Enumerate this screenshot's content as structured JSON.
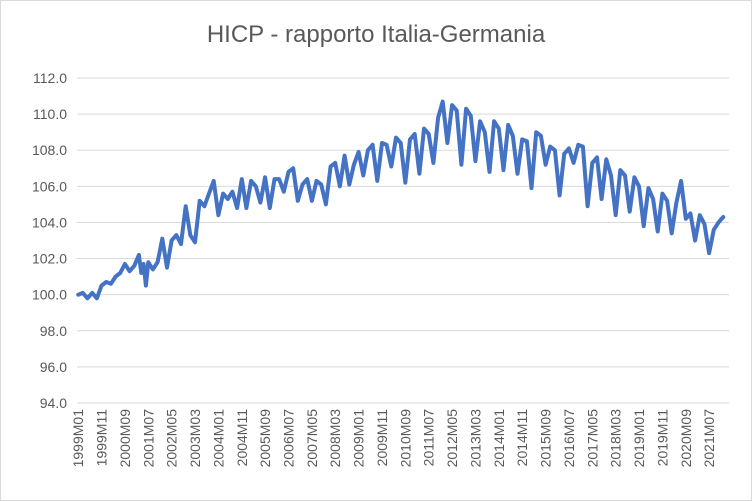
{
  "chart_data": {
    "type": "line",
    "title": "HICP - rapporto Italia-Germania",
    "xlabel": "",
    "ylabel": "",
    "ylim": [
      94.0,
      112.0
    ],
    "yticks": [
      "94.0",
      "96.0",
      "98.0",
      "100.0",
      "102.0",
      "104.0",
      "106.0",
      "108.0",
      "110.0",
      "112.0"
    ],
    "xticks": [
      "1999M01",
      "1999M11",
      "2000M09",
      "2001M07",
      "2002M05",
      "2003M03",
      "2004M01",
      "2004M11",
      "2005M09",
      "2006M07",
      "2007M05",
      "2008M03",
      "2009M01",
      "2009M11",
      "2010M09",
      "2011M07",
      "2012M05",
      "2013M03",
      "2014M01",
      "2014M11",
      "2015M09",
      "2016M07",
      "2017M05",
      "2018M03",
      "2019M01",
      "2019M11",
      "2020M09",
      "2021M07"
    ],
    "x_range": [
      "1999M01",
      "2022M03"
    ],
    "grid": true,
    "legend": "none",
    "line_color": "#4472c4",
    "keypoints": [
      [
        "1999M01",
        100.0
      ],
      [
        "1999M03",
        100.1
      ],
      [
        "1999M05",
        99.8
      ],
      [
        "1999M07",
        100.1
      ],
      [
        "1999M09",
        99.8
      ],
      [
        "1999M11",
        100.5
      ],
      [
        "2000M01",
        100.7
      ],
      [
        "2000M03",
        100.6
      ],
      [
        "2000M05",
        101.0
      ],
      [
        "2000M07",
        101.2
      ],
      [
        "2000M09",
        101.7
      ],
      [
        "2000M11",
        101.3
      ],
      [
        "2001M01",
        101.6
      ],
      [
        "2001M03",
        102.2
      ],
      [
        "2001M04",
        101.2
      ],
      [
        "2001M05",
        101.7
      ],
      [
        "2001M06",
        100.5
      ],
      [
        "2001M07",
        101.8
      ],
      [
        "2001M09",
        101.4
      ],
      [
        "2001M11",
        101.8
      ],
      [
        "2002M01",
        103.1
      ],
      [
        "2002M03",
        101.5
      ],
      [
        "2002M05",
        103.0
      ],
      [
        "2002M07",
        103.3
      ],
      [
        "2002M09",
        102.8
      ],
      [
        "2002M11",
        104.9
      ],
      [
        "2003M01",
        103.3
      ],
      [
        "2003M03",
        102.9
      ],
      [
        "2003M05",
        105.2
      ],
      [
        "2003M07",
        104.9
      ],
      [
        "2003M09",
        105.6
      ],
      [
        "2003M11",
        106.3
      ],
      [
        "2004M01",
        104.4
      ],
      [
        "2004M03",
        105.6
      ],
      [
        "2004M05",
        105.3
      ],
      [
        "2004M07",
        105.7
      ],
      [
        "2004M09",
        104.8
      ],
      [
        "2004M11",
        106.4
      ],
      [
        "2005M01",
        104.8
      ],
      [
        "2005M03",
        106.3
      ],
      [
        "2005M05",
        106.0
      ],
      [
        "2005M07",
        105.1
      ],
      [
        "2005M09",
        106.5
      ],
      [
        "2005M11",
        104.8
      ],
      [
        "2006M01",
        106.4
      ],
      [
        "2006M03",
        106.4
      ],
      [
        "2006M05",
        105.7
      ],
      [
        "2006M07",
        106.8
      ],
      [
        "2006M09",
        107.0
      ],
      [
        "2006M11",
        105.2
      ],
      [
        "2007M01",
        106.1
      ],
      [
        "2007M03",
        106.4
      ],
      [
        "2007M05",
        105.2
      ],
      [
        "2007M07",
        106.3
      ],
      [
        "2007M09",
        106.1
      ],
      [
        "2007M11",
        105.0
      ],
      [
        "2008M01",
        107.1
      ],
      [
        "2008M03",
        107.3
      ],
      [
        "2008M05",
        106.0
      ],
      [
        "2008M07",
        107.7
      ],
      [
        "2008M09",
        106.1
      ],
      [
        "2008M11",
        107.2
      ],
      [
        "2009M01",
        107.9
      ],
      [
        "2009M03",
        106.6
      ],
      [
        "2009M05",
        108.0
      ],
      [
        "2009M07",
        108.3
      ],
      [
        "2009M09",
        106.3
      ],
      [
        "2009M11",
        108.4
      ],
      [
        "2010M01",
        108.3
      ],
      [
        "2010M03",
        107.1
      ],
      [
        "2010M05",
        108.7
      ],
      [
        "2010M07",
        108.4
      ],
      [
        "2010M09",
        106.2
      ],
      [
        "2010M11",
        108.6
      ],
      [
        "2011M01",
        108.9
      ],
      [
        "2011M03",
        106.7
      ],
      [
        "2011M05",
        109.2
      ],
      [
        "2011M07",
        108.9
      ],
      [
        "2011M09",
        107.3
      ],
      [
        "2011M11",
        109.8
      ],
      [
        "2012M01",
        110.7
      ],
      [
        "2012M03",
        108.4
      ],
      [
        "2012M05",
        110.5
      ],
      [
        "2012M07",
        110.2
      ],
      [
        "2012M09",
        107.2
      ],
      [
        "2012M11",
        110.3
      ],
      [
        "2013M01",
        109.9
      ],
      [
        "2013M03",
        107.4
      ],
      [
        "2013M05",
        109.6
      ],
      [
        "2013M07",
        109.0
      ],
      [
        "2013M09",
        106.8
      ],
      [
        "2013M11",
        109.6
      ],
      [
        "2014M01",
        109.2
      ],
      [
        "2014M03",
        106.9
      ],
      [
        "2014M05",
        109.4
      ],
      [
        "2014M07",
        108.8
      ],
      [
        "2014M09",
        106.7
      ],
      [
        "2014M11",
        108.6
      ],
      [
        "2015M01",
        108.5
      ],
      [
        "2015M03",
        105.9
      ],
      [
        "2015M05",
        109.0
      ],
      [
        "2015M07",
        108.8
      ],
      [
        "2015M09",
        107.2
      ],
      [
        "2015M11",
        108.2
      ],
      [
        "2016M01",
        108.0
      ],
      [
        "2016M03",
        105.5
      ],
      [
        "2016M05",
        107.8
      ],
      [
        "2016M07",
        108.1
      ],
      [
        "2016M09",
        107.3
      ],
      [
        "2016M11",
        108.3
      ],
      [
        "2017M01",
        108.2
      ],
      [
        "2017M03",
        104.9
      ],
      [
        "2017M05",
        107.3
      ],
      [
        "2017M07",
        107.6
      ],
      [
        "2017M09",
        105.3
      ],
      [
        "2017M11",
        107.5
      ],
      [
        "2018M01",
        106.6
      ],
      [
        "2018M03",
        104.4
      ],
      [
        "2018M05",
        106.9
      ],
      [
        "2018M07",
        106.6
      ],
      [
        "2018M09",
        104.6
      ],
      [
        "2018M11",
        106.5
      ],
      [
        "2019M01",
        106.0
      ],
      [
        "2019M03",
        103.8
      ],
      [
        "2019M05",
        105.9
      ],
      [
        "2019M07",
        105.3
      ],
      [
        "2019M09",
        103.5
      ],
      [
        "2019M11",
        105.6
      ],
      [
        "2020M01",
        105.2
      ],
      [
        "2020M03",
        103.4
      ],
      [
        "2020M05",
        105.1
      ],
      [
        "2020M07",
        106.3
      ],
      [
        "2020M09",
        104.2
      ],
      [
        "2020M11",
        104.5
      ],
      [
        "2021M01",
        103.0
      ],
      [
        "2021M03",
        104.4
      ],
      [
        "2021M05",
        103.9
      ],
      [
        "2021M07",
        102.3
      ],
      [
        "2021M09",
        103.6
      ],
      [
        "2021M11",
        104.0
      ],
      [
        "2022M01",
        104.3
      ]
    ]
  }
}
